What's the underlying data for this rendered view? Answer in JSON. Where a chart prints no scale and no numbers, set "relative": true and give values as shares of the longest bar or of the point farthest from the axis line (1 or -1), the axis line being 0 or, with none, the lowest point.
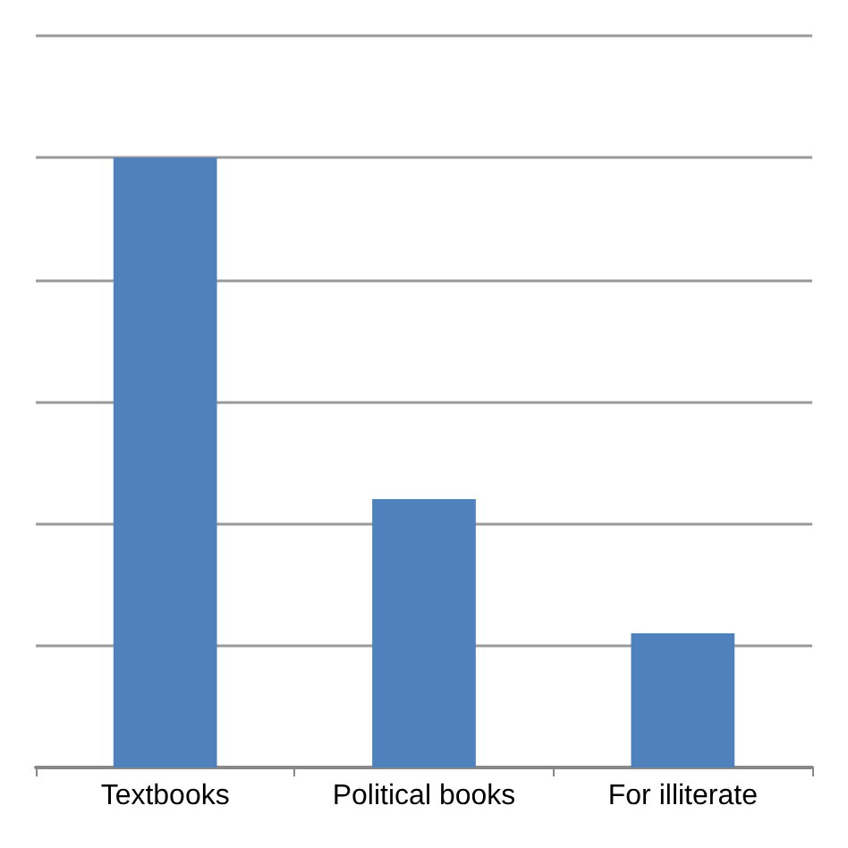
{
  "chart_data": {
    "type": "bar",
    "relative": true,
    "categories": [
      "Textbooks",
      "Political books",
      "For illiterate"
    ],
    "values": [
      1,
      0.44,
      0.22
    ],
    "color": "#4f81bd",
    "grid": "y"
  }
}
